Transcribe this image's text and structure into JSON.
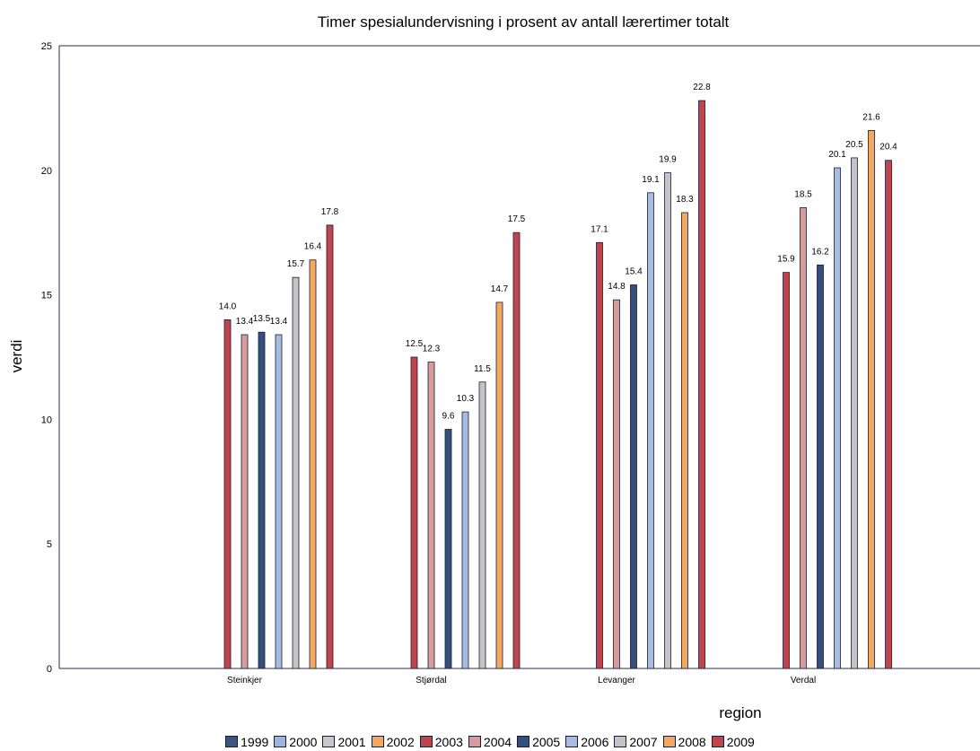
{
  "chart_data": {
    "type": "bar",
    "title": "Timer spesialundervisning i prosent av antall lærertimer totalt",
    "xlabel": "region",
    "ylabel": "verdi",
    "ylim": [
      0,
      25
    ],
    "yticks": [
      "0",
      "5",
      "10",
      "15",
      "20",
      "25"
    ],
    "categories": [
      "Steinkjer",
      "Stjørdal",
      "Levanger",
      "Verdal"
    ],
    "series": [
      {
        "name": "1999",
        "color": "#3b5580",
        "values": [
          null,
          null,
          null,
          null
        ],
        "labels": [
          "",
          "",
          "",
          ""
        ]
      },
      {
        "name": "2000",
        "color": "#9fb4dc",
        "values": [
          null,
          null,
          null,
          null
        ],
        "labels": [
          "",
          "",
          "",
          ""
        ]
      },
      {
        "name": "2001",
        "color": "#c8c8c8",
        "values": [
          null,
          null,
          null,
          null
        ],
        "labels": [
          "",
          "",
          "",
          ""
        ]
      },
      {
        "name": "2002",
        "color": "#f2a860",
        "values": [
          null,
          null,
          null,
          null
        ],
        "labels": [
          "",
          "",
          "",
          ""
        ]
      },
      {
        "name": "2003",
        "color": "#c0454a",
        "values": [
          14.0,
          12.5,
          17.1,
          15.9
        ],
        "labels": [
          "14.0",
          "12.5",
          "17.1",
          "15.9"
        ]
      },
      {
        "name": "2004",
        "color": "#d69c9c",
        "values": [
          13.4,
          12.3,
          14.8,
          18.5
        ],
        "labels": [
          "13.4",
          "12.3",
          "14.8",
          "18.5"
        ]
      },
      {
        "name": "2005",
        "color": "#34507a",
        "values": [
          13.5,
          9.6,
          15.4,
          16.2
        ],
        "labels": [
          "13.5",
          "9.6",
          "15.4",
          "16.2"
        ]
      },
      {
        "name": "2006",
        "color": "#a8bce0",
        "values": [
          13.4,
          10.3,
          19.1,
          20.1
        ],
        "labels": [
          "13.4",
          "10.3",
          "19.1",
          "20.1"
        ]
      },
      {
        "name": "2007",
        "color": "#c4c4c4",
        "values": [
          15.7,
          11.5,
          19.9,
          20.5
        ],
        "labels": [
          "15.7",
          "11.5",
          "19.9",
          "20.5"
        ]
      },
      {
        "name": "2008",
        "color": "#f2a860",
        "values": [
          16.4,
          14.7,
          18.3,
          21.6
        ],
        "labels": [
          "16.4",
          "14.7",
          "18.3",
          "21.6"
        ]
      },
      {
        "name": "2009",
        "color": "#c0454a",
        "values": [
          17.8,
          17.5,
          22.8,
          20.4
        ],
        "labels": [
          "17.8",
          "17.5",
          "22.8",
          "20.4"
        ]
      }
    ],
    "grid": false,
    "legend_position": "bottom"
  }
}
